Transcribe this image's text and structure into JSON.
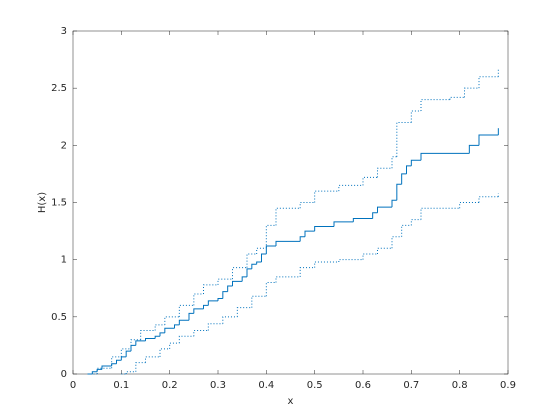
{
  "chart_data": {
    "type": "stairs",
    "xlabel": "x",
    "ylabel": "H(x)",
    "xlim": [
      0,
      0.9
    ],
    "xticks": [
      0,
      0.1,
      0.2,
      0.3,
      0.4,
      0.5,
      0.6,
      0.7,
      0.8,
      0.9
    ],
    "ylim": [
      0,
      3
    ],
    "yticks": [
      0,
      0.5,
      1,
      1.5,
      2,
      2.5,
      3
    ],
    "grid": false,
    "series": [
      {
        "color": "#0072bd",
        "style": "solid",
        "x": [
          0.03,
          0.04,
          0.05,
          0.06,
          0.08,
          0.09,
          0.1,
          0.11,
          0.12,
          0.13,
          0.15,
          0.17,
          0.18,
          0.19,
          0.21,
          0.22,
          0.24,
          0.25,
          0.27,
          0.28,
          0.3,
          0.31,
          0.32,
          0.33,
          0.35,
          0.36,
          0.37,
          0.38,
          0.39,
          0.4,
          0.42,
          0.47,
          0.48,
          0.5,
          0.54,
          0.58,
          0.62,
          0.63,
          0.66,
          0.67,
          0.68,
          0.69,
          0.7,
          0.72,
          0.82,
          0.84,
          0.88
        ],
        "values": [
          0,
          0.02,
          0.04,
          0.07,
          0.09,
          0.12,
          0.15,
          0.2,
          0.25,
          0.29,
          0.31,
          0.33,
          0.36,
          0.4,
          0.43,
          0.47,
          0.53,
          0.57,
          0.6,
          0.64,
          0.66,
          0.72,
          0.77,
          0.81,
          0.85,
          0.92,
          0.96,
          0.98,
          1.05,
          1.12,
          1.16,
          1.2,
          1.25,
          1.29,
          1.33,
          1.36,
          1.41,
          1.46,
          1.52,
          1.66,
          1.75,
          1.82,
          1.87,
          1.93,
          2.0,
          2.09,
          2.15
        ]
      },
      {
        "color": "#0072bd",
        "style": "dotted",
        "x": [
          0.03,
          0.05,
          0.08,
          0.1,
          0.12,
          0.14,
          0.17,
          0.19,
          0.22,
          0.25,
          0.27,
          0.3,
          0.33,
          0.36,
          0.38,
          0.4,
          0.42,
          0.47,
          0.5,
          0.55,
          0.6,
          0.63,
          0.66,
          0.67,
          0.7,
          0.72,
          0.78,
          0.81,
          0.84,
          0.88
        ],
        "values": [
          0,
          0.05,
          0.15,
          0.22,
          0.3,
          0.38,
          0.43,
          0.5,
          0.6,
          0.7,
          0.78,
          0.83,
          0.93,
          1.05,
          1.1,
          1.3,
          1.45,
          1.5,
          1.6,
          1.65,
          1.72,
          1.8,
          1.9,
          2.2,
          2.3,
          2.4,
          2.42,
          2.5,
          2.6,
          2.67
        ]
      },
      {
        "color": "#0072bd",
        "style": "dotted",
        "x": [
          0.1,
          0.11,
          0.13,
          0.15,
          0.18,
          0.2,
          0.22,
          0.25,
          0.28,
          0.31,
          0.34,
          0.37,
          0.4,
          0.42,
          0.47,
          0.5,
          0.55,
          0.6,
          0.63,
          0.66,
          0.68,
          0.7,
          0.72,
          0.8,
          0.84,
          0.88
        ],
        "values": [
          0,
          0.02,
          0.1,
          0.15,
          0.22,
          0.27,
          0.33,
          0.38,
          0.44,
          0.5,
          0.58,
          0.68,
          0.8,
          0.85,
          0.93,
          0.98,
          1.0,
          1.05,
          1.1,
          1.2,
          1.3,
          1.35,
          1.45,
          1.5,
          1.55,
          1.58
        ]
      }
    ]
  }
}
